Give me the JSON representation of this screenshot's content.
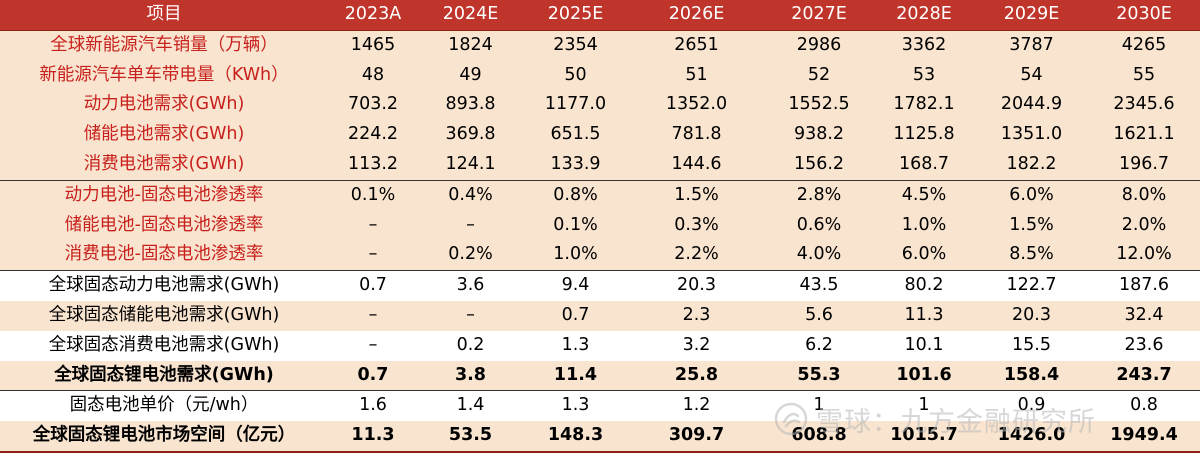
{
  "table": {
    "header": [
      "项目",
      "2023A",
      "2024E",
      "2025E",
      "2026E",
      "2027E",
      "2028E",
      "2029E",
      "2030E"
    ],
    "rows": [
      {
        "label": "全球新能源汽车销量（万辆）",
        "values": [
          "1465",
          "1824",
          "2354",
          "2651",
          "2986",
          "3362",
          "3787",
          "4265"
        ]
      },
      {
        "label": "新能源汽车单车带电量（KWh）",
        "values": [
          "48",
          "49",
          "50",
          "51",
          "52",
          "53",
          "54",
          "55"
        ]
      },
      {
        "label": "动力电池需求(GWh)",
        "values": [
          "703.2",
          "893.8",
          "1177.0",
          "1352.0",
          "1552.5",
          "1782.1",
          "2044.9",
          "2345.6"
        ]
      },
      {
        "label": "储能电池需求(GWh)",
        "values": [
          "224.2",
          "369.8",
          "651.5",
          "781.8",
          "938.2",
          "1125.8",
          "1351.0",
          "1621.1"
        ]
      },
      {
        "label": "消费电池需求(GWh)",
        "values": [
          "113.2",
          "124.1",
          "133.9",
          "144.6",
          "156.2",
          "168.7",
          "182.2",
          "196.7"
        ]
      },
      {
        "label": "动力电池-固态电池渗透率",
        "values": [
          "0.1%",
          "0.4%",
          "0.8%",
          "1.5%",
          "2.8%",
          "4.5%",
          "6.0%",
          "8.0%"
        ]
      },
      {
        "label": "储能电池-固态电池渗透率",
        "values": [
          "–",
          "–",
          "0.1%",
          "0.3%",
          "0.6%",
          "1.0%",
          "1.5%",
          "2.0%"
        ]
      },
      {
        "label": "消费电池-固态电池渗透率",
        "values": [
          "–",
          "0.2%",
          "1.0%",
          "2.2%",
          "4.0%",
          "6.0%",
          "8.5%",
          "12.0%"
        ]
      },
      {
        "label": "全球固态动力电池需求(GWh)",
        "values": [
          "0.7",
          "3.6",
          "9.4",
          "20.3",
          "43.5",
          "80.2",
          "122.7",
          "187.6"
        ]
      },
      {
        "label": "全球固态储能电池需求(GWh)",
        "values": [
          "–",
          "–",
          "0.7",
          "2.3",
          "5.6",
          "11.3",
          "20.3",
          "32.4"
        ]
      },
      {
        "label": "全球固态消费电池需求(GWh)",
        "values": [
          "–",
          "0.2",
          "1.3",
          "3.2",
          "6.2",
          "10.1",
          "15.5",
          "23.6"
        ]
      },
      {
        "label": "全球固态锂电池需求(GWh)",
        "values": [
          "0.7",
          "3.8",
          "11.4",
          "25.8",
          "55.3",
          "101.6",
          "158.4",
          "243.7"
        ]
      },
      {
        "label": "固态电池单价（元/wh）",
        "values": [
          "1.6",
          "1.4",
          "1.3",
          "1.2",
          "1",
          "1",
          "0.9",
          "0.8"
        ]
      },
      {
        "label": "全球固态锂电池市场空间（亿元）",
        "values": [
          "11.3",
          "53.5",
          "148.3",
          "309.7",
          "608.8",
          "1015.7",
          "1426.0",
          "1949.4"
        ]
      }
    ]
  },
  "watermark": {
    "text": "雪球：九方金融研究所",
    "icon": "snowball-logo-icon"
  },
  "colors": {
    "header_bg": "#c0352b",
    "shade_bg": "#f8e4cf",
    "red_text": "#c8201c"
  }
}
